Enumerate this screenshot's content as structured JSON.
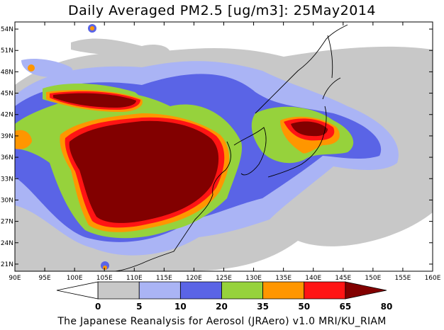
{
  "title": "Daily Averaged PM2.5 [ug/m3]: 25May2014",
  "footer": "The Japanese Reanalysis for Aerosol (JRAero) v1.0 MRI/KU_RIAM",
  "map": {
    "lon_range": [
      90,
      160
    ],
    "lat_range": [
      20,
      55
    ],
    "lon_ticks": [
      "90E",
      "95E",
      "100E",
      "105E",
      "110E",
      "115E",
      "120E",
      "125E",
      "130E",
      "135E",
      "140E",
      "145E",
      "150E",
      "155E",
      "160E"
    ],
    "lat_ticks": [
      "54N",
      "51N",
      "48N",
      "45N",
      "42N",
      "39N",
      "36N",
      "33N",
      "30N",
      "27N",
      "24N",
      "21N"
    ]
  },
  "colorbar": {
    "labels": [
      "0",
      "5",
      "10",
      "20",
      "35",
      "50",
      "65",
      "80"
    ],
    "colors": [
      "#ffffff",
      "#c8c8c8",
      "#aab4f5",
      "#5a64e6",
      "#96d23c",
      "#ff9600",
      "#ff1414",
      "#820000"
    ]
  }
}
